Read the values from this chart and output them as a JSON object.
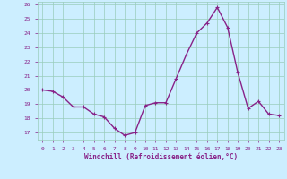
{
  "x": [
    0,
    1,
    2,
    3,
    4,
    5,
    6,
    7,
    8,
    9,
    10,
    11,
    12,
    13,
    14,
    15,
    16,
    17,
    18,
    19,
    20,
    21,
    22,
    23
  ],
  "y": [
    20.0,
    19.9,
    19.5,
    18.8,
    18.8,
    18.3,
    18.1,
    17.3,
    16.8,
    17.0,
    18.9,
    19.1,
    19.1,
    20.8,
    22.5,
    24.0,
    24.7,
    25.8,
    24.4,
    21.2,
    18.7,
    19.2,
    18.3,
    18.2
  ],
  "line_color": "#882288",
  "marker": "P",
  "marker_size": 2.5,
  "linewidth": 1.0,
  "bg_color": "#cceeff",
  "grid_color": "#99ccbb",
  "xlabel": "Windchill (Refroidissement éolien,°C)",
  "xlabel_color": "#882288",
  "tick_color": "#882288",
  "label_fontsize": 4.5,
  "xlabel_fontsize": 5.5,
  "ylim": [
    16.5,
    26.2
  ],
  "xlim": [
    -0.5,
    23.5
  ],
  "yticks": [
    17,
    18,
    19,
    20,
    21,
    22,
    23,
    24,
    25,
    26
  ],
  "xticks": [
    0,
    1,
    2,
    3,
    4,
    5,
    6,
    7,
    8,
    9,
    10,
    11,
    12,
    13,
    14,
    15,
    16,
    17,
    18,
    19,
    20,
    21,
    22,
    23
  ]
}
